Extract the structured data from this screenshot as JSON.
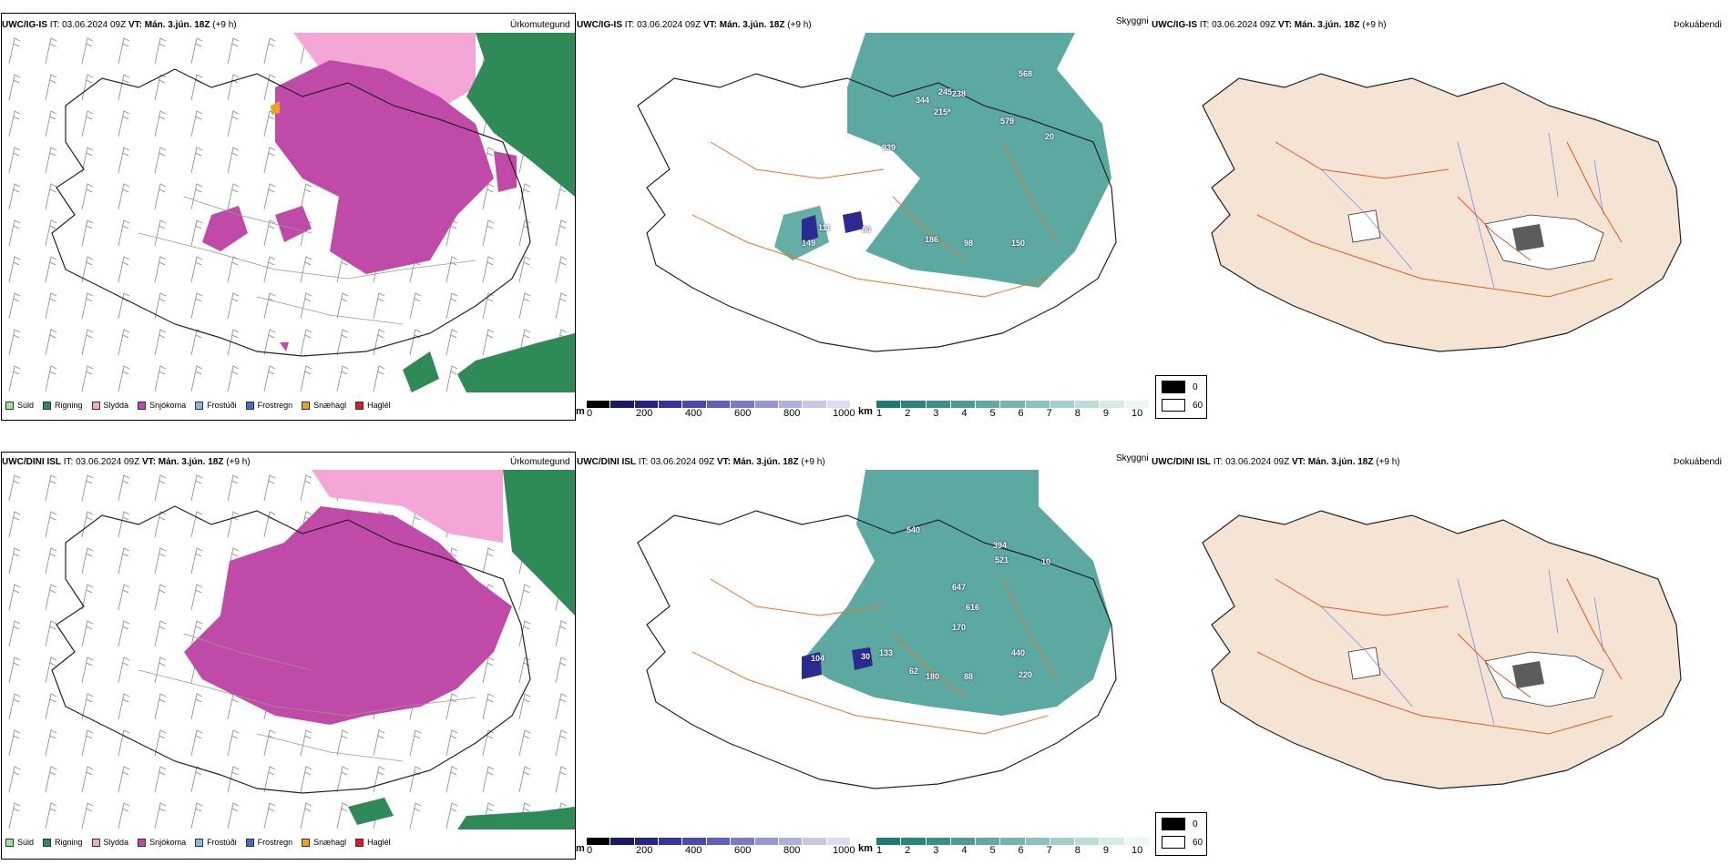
{
  "rows": [
    {
      "model": "UWC/IG-IS",
      "it_label": "IT:",
      "it_value": "03.06.2024 09Z",
      "vt_label": "VT:",
      "vt_value": "Mán. 3.jún. 18Z",
      "lead": "(+9 h)",
      "labels": [
        "344",
        "245",
        "238",
        "215*",
        "579",
        "568",
        "939",
        "20",
        "149",
        "111",
        "80",
        "186",
        "98",
        "150"
      ]
    },
    {
      "model": "UWC/DINI ISL",
      "it_label": "IT:",
      "it_value": "03.06.2024 09Z",
      "vt_label": "VT:",
      "vt_value": "Mán. 3.jún. 18Z",
      "lead": "(+9 h)",
      "labels": [
        "540",
        "394",
        "521",
        "10",
        "647",
        "616",
        "170",
        "104",
        "30",
        "133",
        "62",
        "180",
        "88",
        "440",
        "220"
      ]
    }
  ],
  "titles": {
    "precip": "Úrkomutegund",
    "cloud": "Skyggni",
    "fog": "Þokuábendi"
  },
  "precip_legend": [
    {
      "label": "Súld",
      "color": "#90ee90"
    },
    {
      "label": "Rigning",
      "color": "#2e8b57"
    },
    {
      "label": "Slydda",
      "color": "#f4a6d7"
    },
    {
      "label": "Snjókoma",
      "color": "#c04aa8"
    },
    {
      "label": "Frostúði",
      "color": "#87b5e8"
    },
    {
      "label": "Frostregn",
      "color": "#3a6fc4"
    },
    {
      "label": "Snæhagl",
      "color": "#f0a020"
    },
    {
      "label": "Haglél",
      "color": "#e31a1c"
    }
  ],
  "height_scale": {
    "unit": "m",
    "ticks": [
      "0",
      "200",
      "400",
      "600",
      "800",
      "1000"
    ],
    "colors": [
      "#000000",
      "#1a1a66",
      "#262680",
      "#35359a",
      "#4a4aa8",
      "#6060b8",
      "#7a7ac4",
      "#9696d0",
      "#b0b0dc",
      "#c8c8e6",
      "#dcdcf0"
    ]
  },
  "cloud_scale": {
    "unit": "km",
    "ticks": [
      "1",
      "2",
      "3",
      "4",
      "5",
      "6",
      "7",
      "8",
      "9",
      "10"
    ],
    "colors": [
      "#1f7a72",
      "#2a857d",
      "#3a9088",
      "#4c9c94",
      "#60a8a0",
      "#76b5ad",
      "#8cc2bb",
      "#a4cfc9",
      "#bcdcd7",
      "#d6ebe8",
      "#eef7f6"
    ]
  },
  "fog_key": [
    {
      "label": "0",
      "color": "#000000"
    },
    {
      "label": "60",
      "color": "#ffffff"
    }
  ],
  "colors": {
    "land": "#f5e3d3",
    "coast": "#222222",
    "road": "#e8742a",
    "river": "#7a8cf0",
    "snow": "#c04aa8",
    "sleet": "#f4a6d7",
    "rain": "#2e8b57",
    "cloud": "#3f9a90",
    "ice": "#2a2a90"
  }
}
